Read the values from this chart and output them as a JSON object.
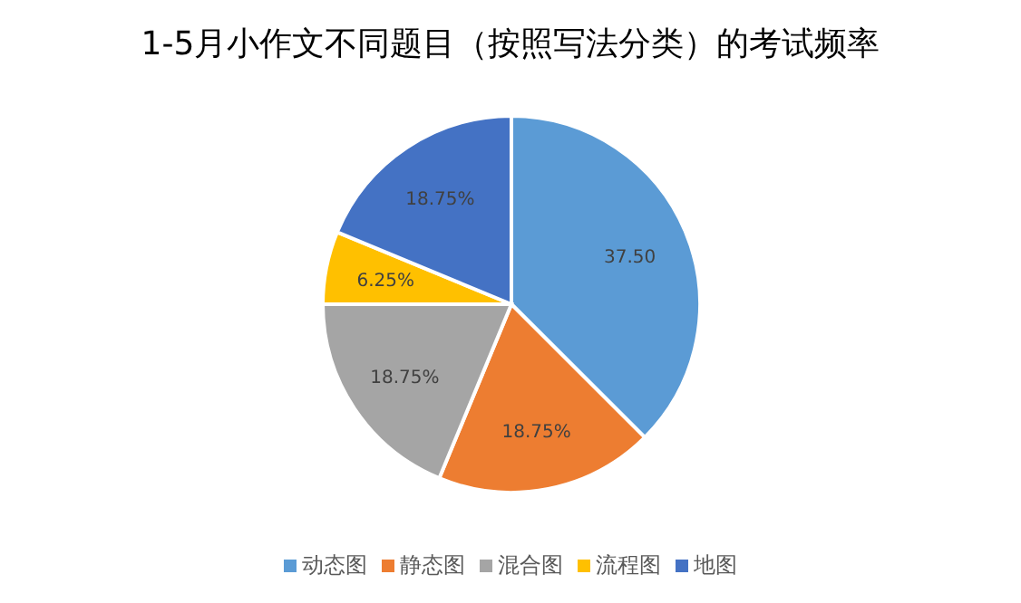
{
  "chart_data": {
    "type": "pie",
    "title": "1-5月小作文不同题目（按照写法分类）的考试频率",
    "categories": [
      "动态图",
      "静态图",
      "混合图",
      "流程图",
      "地图"
    ],
    "values": [
      37.5,
      18.75,
      18.75,
      6.25,
      18.75
    ],
    "value_labels": [
      "37.50",
      "18.75%",
      "18.75%",
      "6.25%",
      "18.75%"
    ],
    "colors": [
      "#5b9bd5",
      "#ed7d31",
      "#a5a5a5",
      "#ffc000",
      "#4472c4"
    ],
    "legend": "bottom"
  }
}
